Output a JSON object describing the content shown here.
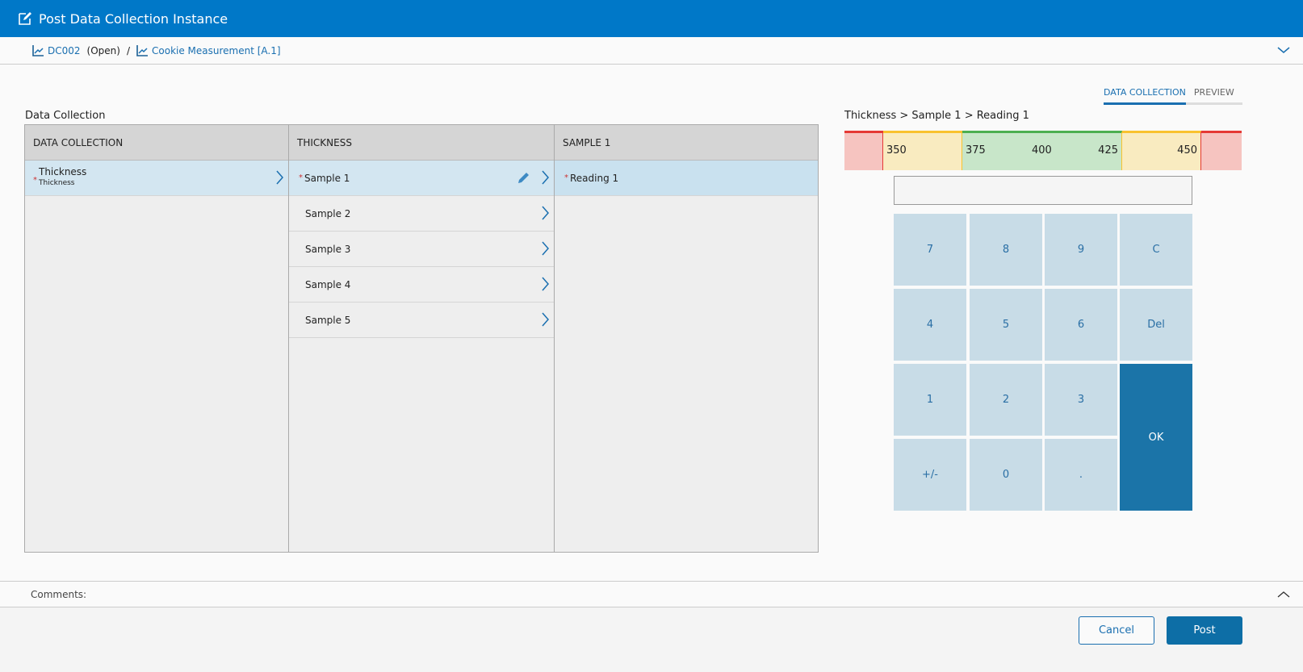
{
  "window": {
    "title": "Post Data Collection Instance",
    "title_icon": "edit-icon"
  },
  "breadcrumb": {
    "items": [
      {
        "label": "DC002",
        "status": "(Open)",
        "icon": "chart-line-icon"
      },
      {
        "label": "Cookie Measurement [A.1]",
        "icon": "chart-line-icon"
      }
    ],
    "separator": "/"
  },
  "tabs": [
    {
      "label": "DATA COLLECTION",
      "active": true
    },
    {
      "label": "PREVIEW",
      "active": false
    }
  ],
  "section_title": "Data Collection",
  "columns": [
    {
      "header": "DATA COLLECTION",
      "rows": [
        {
          "label": "Thickness",
          "sub": "Thickness",
          "required": true,
          "selected": true
        }
      ]
    },
    {
      "header": "THICKNESS",
      "rows": [
        {
          "label": "Sample 1",
          "required": true,
          "selected": true,
          "editing": true
        },
        {
          "label": "Sample 2"
        },
        {
          "label": "Sample 3"
        },
        {
          "label": "Sample 4"
        },
        {
          "label": "Sample 5"
        }
      ]
    },
    {
      "header": "SAMPLE 1",
      "rows": [
        {
          "label": "Reading 1",
          "required": true,
          "selected": true
        }
      ]
    }
  ],
  "required_marker": "*",
  "path": "Thickness > Sample 1 > Reading 1",
  "gauge": {
    "labels": [
      "350",
      "375",
      "400",
      "425",
      "450"
    ],
    "colors": {
      "red": "#e53935",
      "yellow": "#f9c22e",
      "green": "#4caf50",
      "red_fill": "#f6c4c0",
      "yellow_fill": "#f9ebc0",
      "green_fill": "#c8e6c9"
    }
  },
  "input": {
    "value": ""
  },
  "keypad": [
    "7",
    "8",
    "9",
    "C",
    "4",
    "5",
    "6",
    "Del",
    "1",
    "2",
    "3",
    "+/-",
    "0",
    "."
  ],
  "ok_label": "OK",
  "comments_label": "Comments:",
  "buttons": {
    "cancel": "Cancel",
    "post": "Post"
  },
  "accent": "#0078c8"
}
